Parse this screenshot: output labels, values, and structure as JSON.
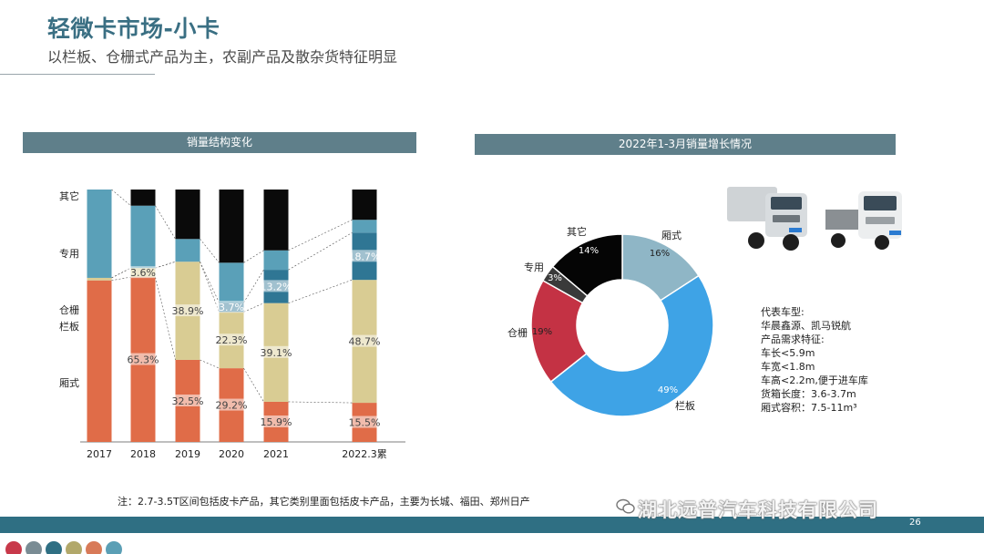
{
  "header": {
    "title": "轻微卡市场-小卡",
    "subtitle": "以栏板、仓栅式产品为主，农副产品及散杂货特征明显"
  },
  "left_panel": {
    "header": "销量结构变化"
  },
  "right_panel": {
    "header": "2022年1-3月销量增长情况"
  },
  "info": {
    "lines": [
      "代表车型:",
      "华晨鑫源、凯马锐航",
      "产品需求特征:",
      "车长<5.9m",
      "车宽<1.8m",
      "车高<2.2m,便于进车库",
      "货箱长度：3.6-3.7m",
      "厢式容积：7.5-11m³"
    ]
  },
  "note": "注：2.7-3.5T区间包括皮卡产品，其它类别里面包括皮卡产品，主要为长城、福田、郑州日产",
  "watermark": "湖北远普汽车科技有限公司",
  "page_number": "26",
  "colors": {
    "xiangshi": "#e06c48",
    "lanban": "#d9cc93",
    "cangzha": "#2f7694",
    "zhuanyong": "#5aa0b8",
    "qita": "#0a0a0a",
    "header_bg": "#5f7f8a",
    "footer_bg": "#2f6f83",
    "title": "#3a6f83"
  },
  "chart_data": [
    {
      "type": "bar",
      "stacked": true,
      "title": "销量结构变化",
      "categories": [
        "2017",
        "2018",
        "2019",
        "2020",
        "2021",
        "2022.3累"
      ],
      "ylim": [
        0,
        100
      ],
      "series_order_bottom_to_top": [
        "厢式",
        "栏板",
        "仓栅",
        "专用",
        "其它"
      ],
      "series": [
        {
          "name": "厢式",
          "values": [
            64,
            65.3,
            32.5,
            29.2,
            15.9,
            15.5
          ],
          "labels": [
            "",
            "65.3%",
            "32.5%",
            "29.2%",
            "15.9%",
            "15.5%"
          ]
        },
        {
          "name": "栏板",
          "values": [
            1,
            3.6,
            38.9,
            22.3,
            39.1,
            48.7
          ],
          "labels": [
            "",
            "3.6%",
            "38.9%",
            "22.3%",
            "39.1%",
            "48.7%"
          ]
        },
        {
          "name": "仓栅",
          "values": [
            0,
            0,
            0,
            3.7,
            13.2,
            18.7
          ],
          "labels": [
            "",
            "",
            "",
            "3.7%",
            "13.2%",
            "18.7%"
          ]
        },
        {
          "name": "专用",
          "values": [
            35,
            24.7,
            9,
            15.8,
            7.7,
            5.1
          ],
          "labels": [
            "",
            "",
            "",
            "",
            "",
            ""
          ]
        },
        {
          "name": "其它",
          "values": [
            0,
            6.4,
            19.6,
            29,
            24.1,
            12
          ],
          "labels": [
            "",
            "",
            "",
            "",
            "",
            ""
          ]
        }
      ],
      "legend_placement": "left-axis labels",
      "grid": false
    },
    {
      "type": "pie",
      "variant": "donut",
      "title": "2022年1-3月销量增长情况",
      "slices": [
        {
          "name": "厢式",
          "value": 16,
          "label": "16%",
          "color": "#8fb6c6"
        },
        {
          "name": "栏板",
          "value": 49,
          "label": "49%",
          "color": "#3ea3e6"
        },
        {
          "name": "仓栅",
          "value": 19,
          "label": "19%",
          "color": "#c43244"
        },
        {
          "name": "专用",
          "value": 3,
          "label": "3%",
          "color": "#3a3a3a"
        },
        {
          "name": "其它",
          "value": 14,
          "label": "14%",
          "color": "#050505"
        }
      ]
    }
  ]
}
